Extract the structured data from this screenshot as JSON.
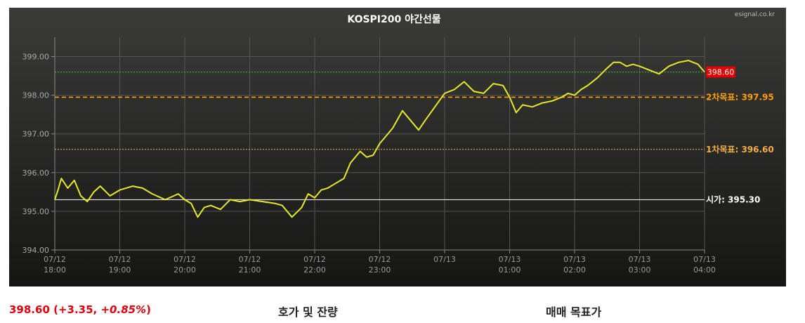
{
  "chart_data": {
    "type": "line",
    "title": "KOSPI200 야간선물",
    "source": "esignal.co.kr",
    "ylim": [
      394.0,
      399.5
    ],
    "yticks": [
      "394.00",
      "395.00",
      "396.00",
      "397.00",
      "398.00",
      "399.00"
    ],
    "ytick_values": [
      394,
      395,
      396,
      397,
      398,
      399
    ],
    "xticks": [
      {
        "date": "07/12",
        "time": "18:00",
        "hour": 18
      },
      {
        "date": "07/12",
        "time": "19:00",
        "hour": 19
      },
      {
        "date": "07/12",
        "time": "20:00",
        "hour": 20
      },
      {
        "date": "07/12",
        "time": "21:00",
        "hour": 21
      },
      {
        "date": "07/12",
        "time": "22:00",
        "hour": 22
      },
      {
        "date": "07/12",
        "time": "23:00",
        "hour": 23
      },
      {
        "date": "07/13",
        "time": "",
        "hour": 24
      },
      {
        "date": "07/13",
        "time": "01:00",
        "hour": 25
      },
      {
        "date": "07/13",
        "time": "02:00",
        "hour": 26
      },
      {
        "date": "07/13",
        "time": "03:00",
        "hour": 27
      },
      {
        "date": "07/13",
        "time": "04:00",
        "hour": 28
      }
    ],
    "xlim": [
      18,
      28
    ],
    "grid": true,
    "series": [
      {
        "color": "#e8e82a",
        "x": [
          18.0,
          18.05,
          18.1,
          18.2,
          18.3,
          18.4,
          18.5,
          18.6,
          18.7,
          18.85,
          19.0,
          19.2,
          19.35,
          19.5,
          19.7,
          19.9,
          20.0,
          20.1,
          20.2,
          20.3,
          20.4,
          20.55,
          20.7,
          20.85,
          21.0,
          21.2,
          21.4,
          21.5,
          21.65,
          21.8,
          21.9,
          22.0,
          22.1,
          22.2,
          22.3,
          22.45,
          22.55,
          22.7,
          22.8,
          22.9,
          23.0,
          23.1,
          23.2,
          23.35,
          23.45,
          23.6,
          23.7,
          23.85,
          24.0,
          24.15,
          24.3,
          24.45,
          24.6,
          24.75,
          24.9,
          25.0,
          25.1,
          25.2,
          25.35,
          25.5,
          25.65,
          25.8,
          25.9,
          26.0,
          26.1,
          26.2,
          26.35,
          26.5,
          26.6,
          26.7,
          26.8,
          26.9,
          27.0,
          27.15,
          27.3,
          27.45,
          27.6,
          27.75,
          27.9,
          28.0
        ],
        "y": [
          395.3,
          395.55,
          395.85,
          395.6,
          395.8,
          395.4,
          395.25,
          395.5,
          395.65,
          395.4,
          395.55,
          395.65,
          395.6,
          395.45,
          395.3,
          395.45,
          395.3,
          395.2,
          394.85,
          395.1,
          395.15,
          395.05,
          395.3,
          395.25,
          395.3,
          395.25,
          395.2,
          395.15,
          394.85,
          395.1,
          395.45,
          395.35,
          395.55,
          395.6,
          395.7,
          395.85,
          396.25,
          396.55,
          396.4,
          396.45,
          396.75,
          396.95,
          397.15,
          397.6,
          397.4,
          397.1,
          397.35,
          397.7,
          398.05,
          398.15,
          398.35,
          398.1,
          398.05,
          398.3,
          398.25,
          397.95,
          397.55,
          397.75,
          397.7,
          397.8,
          397.85,
          397.95,
          398.05,
          398.0,
          398.15,
          398.25,
          398.45,
          398.7,
          398.85,
          398.85,
          398.75,
          398.8,
          398.75,
          398.65,
          398.55,
          398.75,
          398.85,
          398.9,
          398.8,
          398.6
        ]
      }
    ],
    "reference_lines": [
      {
        "label": "",
        "value": 398.6,
        "color": "#3cc93c",
        "style": "dotted"
      },
      {
        "label": "2차목표:",
        "value": 397.95,
        "value_text": "397.95",
        "color": "#ffa000",
        "style": "dashed"
      },
      {
        "label": "1차목표:",
        "value": 396.6,
        "value_text": "396.60",
        "color": "#f4b040",
        "style": "dotted"
      },
      {
        "label": "시가:",
        "value": 395.3,
        "value_text": "395.30",
        "color": "#ffffff",
        "style": "solid"
      }
    ],
    "last_value_tag": {
      "text": "398.60",
      "color": "#e00000"
    }
  },
  "footer": {
    "last_price": "398.60",
    "change_text": "(+3.35, ",
    "change_pct": "+0.85%",
    "change_close": ")",
    "order_book_label": "호가 및 잔량",
    "target_price_label": "매매 목표가"
  }
}
